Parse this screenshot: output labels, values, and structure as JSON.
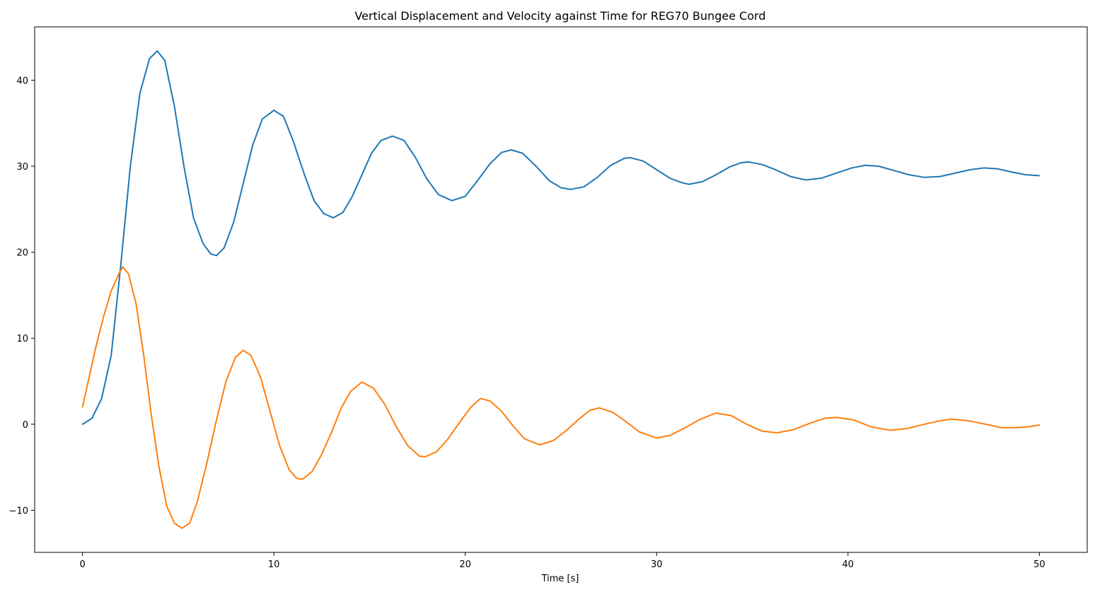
{
  "chart_data": {
    "type": "line",
    "title": "Vertical Displacement and Velocity against Time for REG70 Bungee Cord",
    "xlabel": "Time [s]",
    "ylabel": "",
    "xlim": [
      -2.5,
      52.5
    ],
    "ylim": [
      -14.9,
      46.2
    ],
    "x_ticks": [
      0,
      10,
      20,
      30,
      40,
      50
    ],
    "x_tick_labels": [
      "0",
      "10",
      "20",
      "30",
      "40",
      "50"
    ],
    "y_ticks": [
      -10,
      0,
      10,
      20,
      30,
      40
    ],
    "y_tick_labels": [
      "−10",
      "0",
      "10",
      "20",
      "30",
      "40"
    ],
    "grid": false,
    "legend": "none",
    "series": [
      {
        "color": "#1f77b4",
        "points": [
          [
            0,
            0
          ],
          [
            0.5,
            0.7
          ],
          [
            1.0,
            3.0
          ],
          [
            1.5,
            8.0
          ],
          [
            2.0,
            18.5
          ],
          [
            2.5,
            30.0
          ],
          [
            3.0,
            38.5
          ],
          [
            3.5,
            42.5
          ],
          [
            3.9,
            43.4
          ],
          [
            4.3,
            42.3
          ],
          [
            4.8,
            37.0
          ],
          [
            5.3,
            30.0
          ],
          [
            5.8,
            24.0
          ],
          [
            6.3,
            21.0
          ],
          [
            6.7,
            19.8
          ],
          [
            7.0,
            19.6
          ],
          [
            7.4,
            20.5
          ],
          [
            7.9,
            23.5
          ],
          [
            8.4,
            28.0
          ],
          [
            8.9,
            32.5
          ],
          [
            9.4,
            35.5
          ],
          [
            10.0,
            36.5
          ],
          [
            10.5,
            35.8
          ],
          [
            11.0,
            33.0
          ],
          [
            11.6,
            29.0
          ],
          [
            12.1,
            26.0
          ],
          [
            12.6,
            24.5
          ],
          [
            13.1,
            24.0
          ],
          [
            13.6,
            24.6
          ],
          [
            14.1,
            26.5
          ],
          [
            14.6,
            29.0
          ],
          [
            15.1,
            31.5
          ],
          [
            15.6,
            33.0
          ],
          [
            16.2,
            33.5
          ],
          [
            16.8,
            33.0
          ],
          [
            17.4,
            31.0
          ],
          [
            18.0,
            28.5
          ],
          [
            18.6,
            26.7
          ],
          [
            19.3,
            26.0
          ],
          [
            20.0,
            26.5
          ],
          [
            20.6,
            28.2
          ],
          [
            21.3,
            30.3
          ],
          [
            21.9,
            31.6
          ],
          [
            22.4,
            31.9
          ],
          [
            23.0,
            31.5
          ],
          [
            23.7,
            30.0
          ],
          [
            24.4,
            28.3
          ],
          [
            25.0,
            27.5
          ],
          [
            25.5,
            27.3
          ],
          [
            26.2,
            27.6
          ],
          [
            26.9,
            28.7
          ],
          [
            27.6,
            30.1
          ],
          [
            28.3,
            30.9
          ],
          [
            28.6,
            31.0
          ],
          [
            29.3,
            30.6
          ],
          [
            30.0,
            29.6
          ],
          [
            30.7,
            28.6
          ],
          [
            31.3,
            28.1
          ],
          [
            31.7,
            27.9
          ],
          [
            32.4,
            28.2
          ],
          [
            33.1,
            29.0
          ],
          [
            33.8,
            29.9
          ],
          [
            34.4,
            30.4
          ],
          [
            34.8,
            30.5
          ],
          [
            35.5,
            30.2
          ],
          [
            36.2,
            29.6
          ],
          [
            37.0,
            28.8
          ],
          [
            37.8,
            28.4
          ],
          [
            38.6,
            28.6
          ],
          [
            39.4,
            29.2
          ],
          [
            40.2,
            29.8
          ],
          [
            40.9,
            30.1
          ],
          [
            41.6,
            30.0
          ],
          [
            42.4,
            29.5
          ],
          [
            43.2,
            29.0
          ],
          [
            44.0,
            28.7
          ],
          [
            44.8,
            28.8
          ],
          [
            45.6,
            29.2
          ],
          [
            46.4,
            29.6
          ],
          [
            47.1,
            29.8
          ],
          [
            47.8,
            29.7
          ],
          [
            48.6,
            29.3
          ],
          [
            49.3,
            29.0
          ],
          [
            50.0,
            28.9
          ]
        ]
      },
      {
        "color": "#ff7f0e",
        "points": [
          [
            0,
            2.0
          ],
          [
            0.3,
            5.0
          ],
          [
            0.7,
            9.0
          ],
          [
            1.1,
            12.5
          ],
          [
            1.5,
            15.5
          ],
          [
            1.9,
            17.5
          ],
          [
            2.1,
            18.3
          ],
          [
            2.4,
            17.5
          ],
          [
            2.8,
            14.0
          ],
          [
            3.2,
            8.0
          ],
          [
            3.6,
            1.0
          ],
          [
            4.0,
            -5.0
          ],
          [
            4.4,
            -9.5
          ],
          [
            4.8,
            -11.5
          ],
          [
            5.2,
            -12.1
          ],
          [
            5.6,
            -11.5
          ],
          [
            6.0,
            -9.0
          ],
          [
            6.5,
            -4.5
          ],
          [
            7.0,
            0.5
          ],
          [
            7.5,
            5.0
          ],
          [
            8.0,
            7.8
          ],
          [
            8.4,
            8.6
          ],
          [
            8.8,
            8.0
          ],
          [
            9.3,
            5.5
          ],
          [
            9.8,
            1.5
          ],
          [
            10.3,
            -2.5
          ],
          [
            10.8,
            -5.3
          ],
          [
            11.2,
            -6.3
          ],
          [
            11.5,
            -6.4
          ],
          [
            12.0,
            -5.5
          ],
          [
            12.5,
            -3.5
          ],
          [
            13.0,
            -1.0
          ],
          [
            13.5,
            1.8
          ],
          [
            14.0,
            3.8
          ],
          [
            14.6,
            4.9
          ],
          [
            15.2,
            4.2
          ],
          [
            15.8,
            2.3
          ],
          [
            16.4,
            -0.3
          ],
          [
            17.0,
            -2.5
          ],
          [
            17.6,
            -3.7
          ],
          [
            17.9,
            -3.8
          ],
          [
            18.5,
            -3.2
          ],
          [
            19.1,
            -1.7
          ],
          [
            19.7,
            0.2
          ],
          [
            20.3,
            2.0
          ],
          [
            20.8,
            3.0
          ],
          [
            21.3,
            2.7
          ],
          [
            21.9,
            1.5
          ],
          [
            22.5,
            -0.2
          ],
          [
            23.1,
            -1.7
          ],
          [
            23.9,
            -2.4
          ],
          [
            24.6,
            -1.9
          ],
          [
            25.3,
            -0.7
          ],
          [
            26.0,
            0.7
          ],
          [
            26.5,
            1.6
          ],
          [
            27.0,
            1.9
          ],
          [
            27.7,
            1.4
          ],
          [
            28.4,
            0.3
          ],
          [
            29.1,
            -0.9
          ],
          [
            30.0,
            -1.6
          ],
          [
            30.7,
            -1.3
          ],
          [
            31.5,
            -0.4
          ],
          [
            32.3,
            0.6
          ],
          [
            33.1,
            1.3
          ],
          [
            33.9,
            1.0
          ],
          [
            34.7,
            0.0
          ],
          [
            35.5,
            -0.8
          ],
          [
            36.3,
            -1.0
          ],
          [
            37.2,
            -0.6
          ],
          [
            38.0,
            0.1
          ],
          [
            38.8,
            0.7
          ],
          [
            39.4,
            0.8
          ],
          [
            40.3,
            0.5
          ],
          [
            41.2,
            -0.3
          ],
          [
            42.2,
            -0.7
          ],
          [
            43.1,
            -0.5
          ],
          [
            44.0,
            0.0
          ],
          [
            44.8,
            0.4
          ],
          [
            45.4,
            0.6
          ],
          [
            46.3,
            0.4
          ],
          [
            47.2,
            0.0
          ],
          [
            48.0,
            -0.4
          ],
          [
            48.7,
            -0.4
          ],
          [
            49.4,
            -0.3
          ],
          [
            50.0,
            -0.1
          ]
        ]
      }
    ]
  }
}
